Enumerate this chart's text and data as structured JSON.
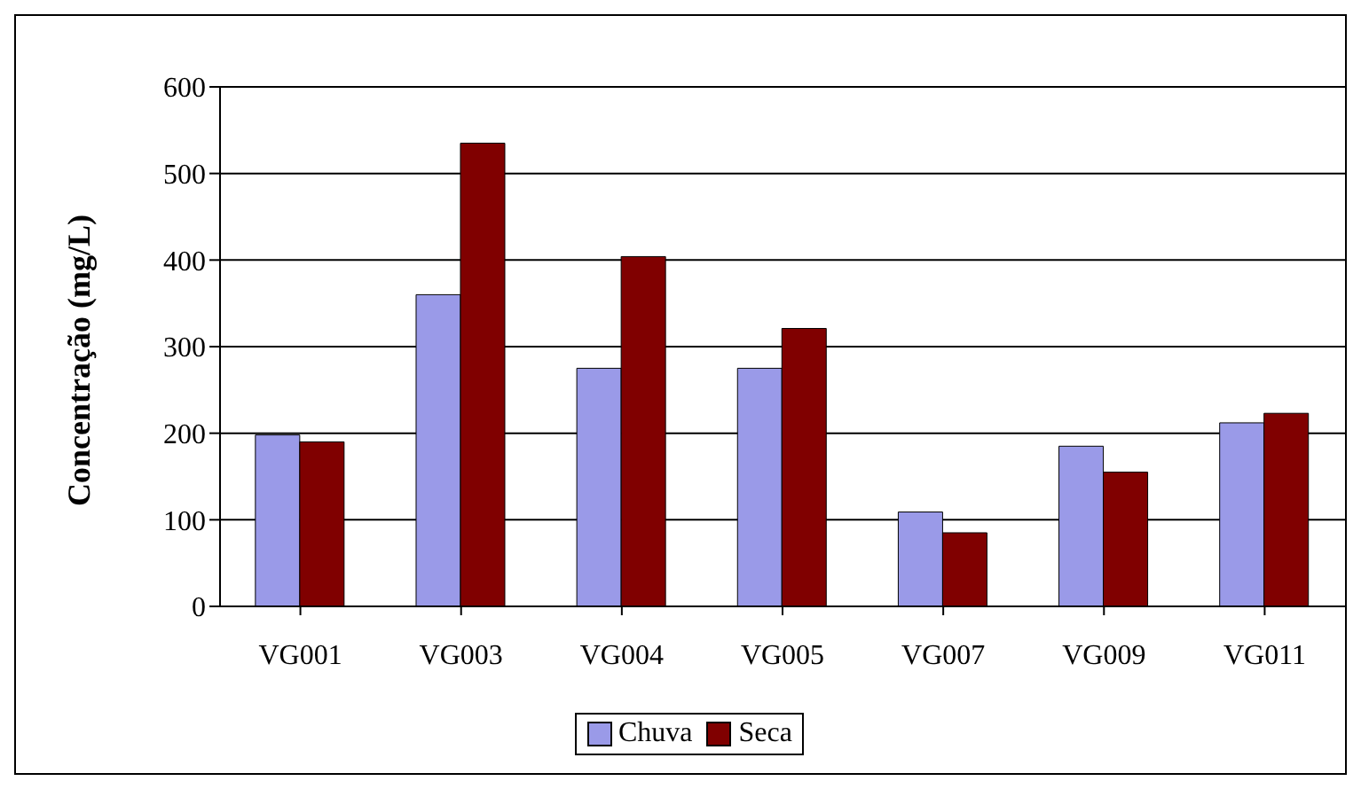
{
  "chart_data": {
    "type": "bar",
    "ylabel": "Concentração (mg/L)",
    "categories": [
      "VG001",
      "VG003",
      "VG004",
      "VG005",
      "VG007",
      "VG009",
      "VG011"
    ],
    "series": [
      {
        "name": "Chuva",
        "color": "#9a9ae8",
        "values": [
          198,
          360,
          275,
          275,
          109,
          185,
          212
        ]
      },
      {
        "name": "Seca",
        "color": "#800000",
        "values": [
          190,
          535,
          404,
          321,
          85,
          155,
          223
        ]
      }
    ],
    "ylim": [
      0,
      600
    ],
    "yticks": [
      0,
      100,
      200,
      300,
      400,
      500,
      600
    ],
    "grid": "y",
    "legend": "bottom"
  }
}
